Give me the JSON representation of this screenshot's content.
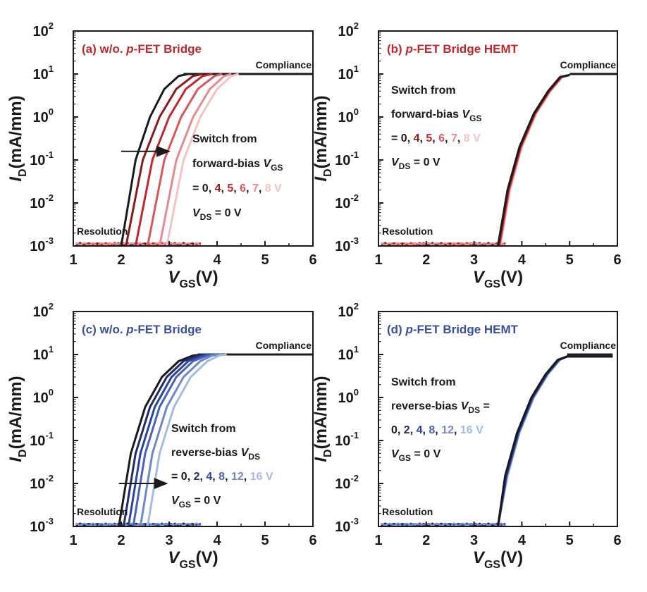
{
  "chart_data": [
    {
      "type": "line",
      "panel_label": "(a) w/o. ",
      "panel_label_italic": "p",
      "panel_label_rest": "-FET Bridge",
      "label_color": "#c0282d",
      "xlabel_main": "V",
      "xlabel_sub": "GS",
      "xlabel_unit": "(V)",
      "ylabel_main": "I",
      "ylabel_sub": "D",
      "ylabel_unit": "(mA/mm)",
      "xlim": [
        1,
        6
      ],
      "ylim_exp": [
        -3,
        2
      ],
      "yscale": "log",
      "x_ticks": [
        "1",
        "2",
        "3",
        "4",
        "5",
        "6"
      ],
      "y_tick_base": "10",
      "y_tick_exps": [
        "-3",
        "-2",
        "-1",
        "0",
        "1",
        "2"
      ],
      "compliance_label": "Compliance",
      "resolution_label": "Resolution",
      "annotation_lines": [
        [
          {
            "t": "Switch from",
            "c": "#1a1a1a"
          }
        ],
        [
          {
            "t": "forward-bias ",
            "c": "#1a1a1a"
          },
          {
            "t": "V",
            "c": "#1a1a1a",
            "i": true
          },
          {
            "t": "GS",
            "c": "#1a1a1a",
            "sub": true
          }
        ],
        [
          {
            "t": "= 0, ",
            "c": "#1a1a1a"
          },
          {
            "t": "4",
            "c": "#8b1a1a"
          },
          {
            "t": ", ",
            "c": "#1a1a1a"
          },
          {
            "t": "5",
            "c": "#c0282d"
          },
          {
            "t": ", ",
            "c": "#1a1a1a"
          },
          {
            "t": "6",
            "c": "#d9575c"
          },
          {
            "t": ", ",
            "c": "#1a1a1a"
          },
          {
            "t": "7",
            "c": "#e58a8d"
          },
          {
            "t": ", ",
            "c": "#1a1a1a"
          },
          {
            "t": "8 V",
            "c": "#f3c2c4"
          }
        ],
        [
          {
            "t": "V",
            "c": "#1a1a1a",
            "i": true
          },
          {
            "t": "DS",
            "c": "#1a1a1a",
            "sub": true
          },
          {
            "t": " = 0 V",
            "c": "#1a1a1a"
          }
        ]
      ],
      "arrow": {
        "x_from": 2.0,
        "x_to": 3.0,
        "y": -0.8
      },
      "series": [
        {
          "color": "#1a1a1a",
          "x": [
            2.0,
            2.3,
            2.6,
            2.9,
            3.2,
            3.4
          ],
          "y": [
            0.001,
            0.1,
            1.0,
            4.5,
            9.0,
            10
          ]
        },
        {
          "color": "#8b1a1a",
          "x": [
            2.1,
            2.45,
            2.8,
            3.15,
            3.5,
            3.7
          ],
          "y": [
            0.001,
            0.1,
            1.0,
            4.5,
            9.0,
            10
          ]
        },
        {
          "color": "#c0282d",
          "x": [
            2.3,
            2.65,
            3.0,
            3.35,
            3.7,
            3.9
          ],
          "y": [
            0.001,
            0.1,
            1.0,
            4.5,
            9.0,
            10
          ]
        },
        {
          "color": "#d9575c",
          "x": [
            2.55,
            2.9,
            3.25,
            3.6,
            3.95,
            4.1
          ],
          "y": [
            0.001,
            0.1,
            1.0,
            4.5,
            9.0,
            10
          ]
        },
        {
          "color": "#e58a8d",
          "x": [
            2.8,
            3.15,
            3.5,
            3.85,
            4.15,
            4.3
          ],
          "y": [
            0.001,
            0.1,
            1.0,
            4.5,
            9.0,
            10
          ]
        },
        {
          "color": "#f3c2c4",
          "x": [
            2.95,
            3.3,
            3.65,
            4.0,
            4.3,
            4.45
          ],
          "y": [
            0.001,
            0.1,
            1.0,
            4.5,
            9.0,
            10
          ]
        }
      ],
      "compliance_x": [
        3.3,
        6.0
      ],
      "noise_color": [
        "#1a1a1a",
        "#c0282d",
        "#e58a8d"
      ]
    },
    {
      "type": "line",
      "panel_label": "(b) ",
      "panel_label_italic": "p",
      "panel_label_rest": "-FET Bridge HEMT",
      "label_color": "#c0282d",
      "xlabel_main": "V",
      "xlabel_sub": "GS",
      "xlabel_unit": "(V)",
      "ylabel_main": "I",
      "ylabel_sub": "D",
      "ylabel_unit": "(mA/mm)",
      "xlim": [
        1,
        6
      ],
      "ylim_exp": [
        -3,
        2
      ],
      "yscale": "log",
      "x_ticks": [
        "1",
        "2",
        "3",
        "4",
        "5",
        "6"
      ],
      "y_tick_base": "10",
      "y_tick_exps": [
        "-3",
        "-2",
        "-1",
        "0",
        "1",
        "2"
      ],
      "compliance_label": "Compliance",
      "resolution_label": "Resolution",
      "annotation_lines": [
        [
          {
            "t": "Switch from",
            "c": "#1a1a1a"
          }
        ],
        [
          {
            "t": "forward-bias ",
            "c": "#1a1a1a"
          },
          {
            "t": "V",
            "c": "#1a1a1a",
            "i": true
          },
          {
            "t": "GS",
            "c": "#1a1a1a",
            "sub": true
          }
        ],
        [
          {
            "t": "= 0, ",
            "c": "#1a1a1a"
          },
          {
            "t": "4",
            "c": "#8b1a1a"
          },
          {
            "t": ", ",
            "c": "#1a1a1a"
          },
          {
            "t": "5",
            "c": "#c0282d"
          },
          {
            "t": ", ",
            "c": "#1a1a1a"
          },
          {
            "t": "6",
            "c": "#d9575c"
          },
          {
            "t": ", ",
            "c": "#1a1a1a"
          },
          {
            "t": "7",
            "c": "#e58a8d"
          },
          {
            "t": ", ",
            "c": "#1a1a1a"
          },
          {
            "t": "8 V",
            "c": "#f3c2c4"
          }
        ],
        [
          {
            "t": "V",
            "c": "#1a1a1a",
            "i": true
          },
          {
            "t": "DS",
            "c": "#1a1a1a",
            "sub": true
          },
          {
            "t": " = 0 V",
            "c": "#1a1a1a"
          }
        ]
      ],
      "series": [
        {
          "color": "#f3c2c4",
          "x": [
            3.55,
            3.75,
            4.0,
            4.3,
            4.6,
            4.85,
            5.0
          ],
          "y": [
            0.001,
            0.02,
            0.2,
            1.2,
            4.0,
            8.5,
            9.5
          ]
        },
        {
          "color": "#e58a8d",
          "x": [
            3.54,
            3.74,
            3.99,
            4.29,
            4.59,
            4.84,
            5.0
          ],
          "y": [
            0.001,
            0.02,
            0.2,
            1.2,
            4.0,
            8.5,
            9.5
          ]
        },
        {
          "color": "#d9575c",
          "x": [
            3.53,
            3.73,
            3.98,
            4.28,
            4.58,
            4.83,
            5.0
          ],
          "y": [
            0.001,
            0.02,
            0.2,
            1.2,
            4.0,
            8.5,
            9.5
          ]
        },
        {
          "color": "#c0282d",
          "x": [
            3.52,
            3.72,
            3.97,
            4.27,
            4.57,
            4.82,
            5.0
          ],
          "y": [
            0.001,
            0.02,
            0.2,
            1.2,
            4.0,
            8.5,
            9.5
          ]
        },
        {
          "color": "#8b1a1a",
          "x": [
            3.51,
            3.71,
            3.96,
            4.26,
            4.56,
            4.81,
            5.0
          ],
          "y": [
            0.001,
            0.02,
            0.2,
            1.2,
            4.0,
            8.5,
            9.5
          ]
        },
        {
          "color": "#1a1a1a",
          "x": [
            3.5,
            3.7,
            3.95,
            4.25,
            4.55,
            4.8,
            5.0
          ],
          "y": [
            0.001,
            0.02,
            0.2,
            1.2,
            4.0,
            8.5,
            9.5
          ]
        }
      ],
      "compliance_x": [
        5.0,
        6.0
      ],
      "noise_color": [
        "#1a1a1a",
        "#c0282d",
        "#e58a8d"
      ]
    },
    {
      "type": "line",
      "panel_label": "(c) w/o. ",
      "panel_label_italic": "p",
      "panel_label_rest": "-FET Bridge",
      "label_color": "#3a4fa3",
      "xlabel_main": "V",
      "xlabel_sub": "GS",
      "xlabel_unit": "(V)",
      "ylabel_main": "I",
      "ylabel_sub": "D",
      "ylabel_unit": "(mA/mm)",
      "xlim": [
        1,
        6
      ],
      "ylim_exp": [
        -3,
        2
      ],
      "yscale": "log",
      "x_ticks": [
        "1",
        "2",
        "3",
        "4",
        "5",
        "6"
      ],
      "y_tick_base": "10",
      "y_tick_exps": [
        "-3",
        "-2",
        "-1",
        "0",
        "1",
        "2"
      ],
      "compliance_label": "Compliance",
      "resolution_label": "Resolution",
      "annotation_lines": [
        [
          {
            "t": "Switch from",
            "c": "#1a1a1a"
          }
        ],
        [
          {
            "t": "reverse-bias ",
            "c": "#1a1a1a"
          },
          {
            "t": "V",
            "c": "#1a1a1a",
            "i": true
          },
          {
            "t": "DS",
            "c": "#1a1a1a",
            "sub": true
          }
        ],
        [
          {
            "t": "= 0, ",
            "c": "#1a1a1a"
          },
          {
            "t": "2",
            "c": "#1f2d6b"
          },
          {
            "t": ", ",
            "c": "#1a1a1a"
          },
          {
            "t": "4",
            "c": "#2c43a0"
          },
          {
            "t": ", ",
            "c": "#1a1a1a"
          },
          {
            "t": "8",
            "c": "#4a63b8"
          },
          {
            "t": ", ",
            "c": "#1a1a1a"
          },
          {
            "t": "12",
            "c": "#6f88cc"
          },
          {
            "t": ", ",
            "c": "#1a1a1a"
          },
          {
            "t": "16 V",
            "c": "#a3bbe3"
          }
        ],
        [
          {
            "t": "V",
            "c": "#1a1a1a",
            "i": true
          },
          {
            "t": "GS",
            "c": "#1a1a1a",
            "sub": true
          },
          {
            "t": " = 0 V",
            "c": "#1a1a1a"
          }
        ]
      ],
      "arrow": {
        "x_from": 1.95,
        "x_to": 2.95,
        "y": -2.0
      },
      "series": [
        {
          "color": "#1a1a1a",
          "x": [
            1.95,
            2.2,
            2.5,
            2.85,
            3.2,
            3.5,
            3.7
          ],
          "y": [
            0.001,
            0.05,
            0.6,
            3.0,
            7.0,
            9.5,
            10
          ]
        },
        {
          "color": "#1f2d6b",
          "x": [
            2.05,
            2.3,
            2.6,
            2.95,
            3.3,
            3.6,
            3.8
          ],
          "y": [
            0.001,
            0.05,
            0.6,
            3.0,
            7.0,
            9.5,
            10
          ]
        },
        {
          "color": "#2c43a0",
          "x": [
            2.15,
            2.4,
            2.7,
            3.05,
            3.4,
            3.7,
            3.9
          ],
          "y": [
            0.001,
            0.05,
            0.6,
            3.0,
            7.0,
            9.5,
            10
          ]
        },
        {
          "color": "#4a63b8",
          "x": [
            2.25,
            2.5,
            2.8,
            3.15,
            3.5,
            3.8,
            4.0
          ],
          "y": [
            0.001,
            0.05,
            0.6,
            3.0,
            7.0,
            9.5,
            10
          ]
        },
        {
          "color": "#6f88cc",
          "x": [
            2.4,
            2.65,
            2.95,
            3.3,
            3.65,
            3.9,
            4.1
          ],
          "y": [
            0.001,
            0.05,
            0.6,
            3.0,
            7.0,
            9.5,
            10
          ]
        },
        {
          "color": "#a3bbe3",
          "x": [
            2.55,
            2.8,
            3.1,
            3.45,
            3.8,
            4.05,
            4.2
          ],
          "y": [
            0.001,
            0.05,
            0.6,
            3.0,
            7.0,
            9.5,
            10
          ]
        }
      ],
      "compliance_x": [
        3.6,
        6.0
      ],
      "noise_color": [
        "#1a1a1a",
        "#2c43a0",
        "#6f88cc"
      ]
    },
    {
      "type": "line",
      "panel_label": "(d) ",
      "panel_label_italic": "p",
      "panel_label_rest": "-FET Bridge HEMT",
      "label_color": "#3a4fa3",
      "xlabel_main": "V",
      "xlabel_sub": "GS",
      "xlabel_unit": "(V)",
      "ylabel_main": "I",
      "ylabel_sub": "D",
      "ylabel_unit": "(mA/mm)",
      "xlim": [
        1,
        6
      ],
      "ylim_exp": [
        -3,
        2
      ],
      "yscale": "log",
      "x_ticks": [
        "1",
        "2",
        "3",
        "4",
        "5",
        "6"
      ],
      "y_tick_base": "10",
      "y_tick_exps": [
        "-3",
        "-2",
        "-1",
        "0",
        "1",
        "2"
      ],
      "compliance_label": "Compliance",
      "resolution_label": "Resolution",
      "annotation_lines": [
        [
          {
            "t": "Switch from",
            "c": "#1a1a1a"
          }
        ],
        [
          {
            "t": "reverse-bias ",
            "c": "#1a1a1a"
          },
          {
            "t": "V",
            "c": "#1a1a1a",
            "i": true
          },
          {
            "t": "DS",
            "c": "#1a1a1a",
            "sub": true
          },
          {
            "t": " =",
            "c": "#1a1a1a"
          }
        ],
        [
          {
            "t": "0, ",
            "c": "#1a1a1a"
          },
          {
            "t": "2",
            "c": "#1f2d6b"
          },
          {
            "t": ", ",
            "c": "#1a1a1a"
          },
          {
            "t": "4",
            "c": "#2c43a0"
          },
          {
            "t": ", ",
            "c": "#1a1a1a"
          },
          {
            "t": "8",
            "c": "#4a63b8"
          },
          {
            "t": ", ",
            "c": "#1a1a1a"
          },
          {
            "t": "12",
            "c": "#6f88cc"
          },
          {
            "t": ", ",
            "c": "#1a1a1a"
          },
          {
            "t": "16 V",
            "c": "#a3bbe3"
          }
        ],
        [
          {
            "t": "V",
            "c": "#1a1a1a",
            "i": true
          },
          {
            "t": "GS",
            "c": "#1a1a1a",
            "sub": true
          },
          {
            "t": " = 0 V",
            "c": "#1a1a1a"
          }
        ]
      ],
      "series": [
        {
          "color": "#a3bbe3",
          "x": [
            3.5,
            3.7,
            3.95,
            4.25,
            4.55,
            4.8,
            4.95,
            5.9
          ],
          "y": [
            0.001,
            0.015,
            0.15,
            1.0,
            3.5,
            7.5,
            9.0,
            9.0
          ]
        },
        {
          "color": "#6f88cc",
          "x": [
            3.5,
            3.69,
            3.94,
            4.24,
            4.54,
            4.79,
            4.95,
            5.9
          ],
          "y": [
            0.001,
            0.015,
            0.15,
            1.0,
            3.5,
            7.5,
            9.0,
            9.0
          ]
        },
        {
          "color": "#4a63b8",
          "x": [
            3.5,
            3.68,
            3.93,
            4.23,
            4.53,
            4.78,
            4.95,
            5.9
          ],
          "y": [
            0.001,
            0.015,
            0.15,
            1.0,
            3.5,
            7.5,
            9.0,
            9.0
          ]
        },
        {
          "color": "#2c43a0",
          "x": [
            3.5,
            3.67,
            3.92,
            4.22,
            4.52,
            4.77,
            4.95,
            5.9
          ],
          "y": [
            0.001,
            0.015,
            0.15,
            1.0,
            3.5,
            7.5,
            9.0,
            9.0
          ]
        },
        {
          "color": "#1f2d6b",
          "x": [
            3.5,
            3.66,
            3.91,
            4.21,
            4.51,
            4.76,
            4.95,
            5.9
          ],
          "y": [
            0.001,
            0.015,
            0.15,
            1.0,
            3.5,
            7.5,
            9.0,
            9.0
          ]
        },
        {
          "color": "#1a1a1a",
          "x": [
            3.5,
            3.65,
            3.9,
            4.2,
            4.5,
            4.75,
            4.95,
            5.9
          ],
          "y": [
            0.001,
            0.015,
            0.15,
            1.0,
            3.5,
            7.5,
            9.0,
            9.0
          ]
        }
      ],
      "compliance_x": [
        4.95,
        5.9
      ],
      "noise_color": [
        "#1a1a1a",
        "#2c43a0",
        "#6f88cc"
      ]
    }
  ]
}
